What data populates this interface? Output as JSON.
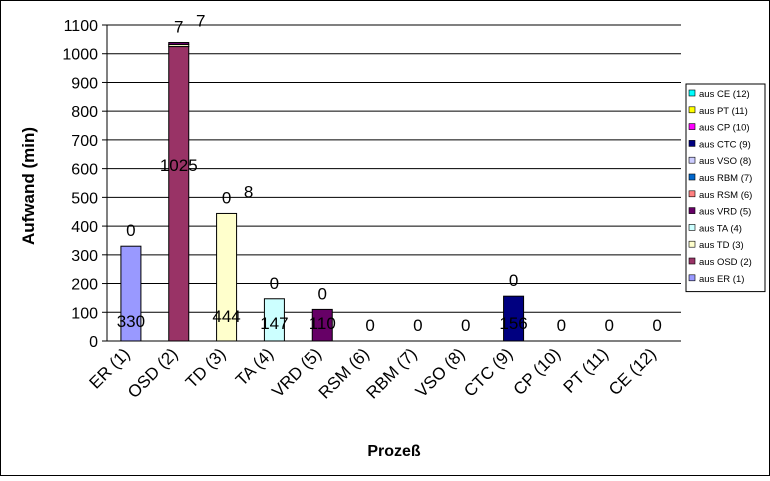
{
  "chart_data": {
    "type": "bar",
    "stacked": true,
    "categories": [
      "ER (1)",
      "OSD (2)",
      "TD (3)",
      "TA (4)",
      "VRD (5)",
      "RSM (6)",
      "RBM (7)",
      "VSO (8)",
      "CTC (9)",
      "CP (10)",
      "PT (11)",
      "CE (12)"
    ],
    "series": [
      {
        "name": "aus ER (1)",
        "color": "#9999ff",
        "values": [
          330,
          0,
          0,
          0,
          0,
          0,
          0,
          0,
          0,
          0,
          0,
          0
        ]
      },
      {
        "name": "aus OSD (2)",
        "color": "#993366",
        "values": [
          0,
          1025,
          0,
          0,
          0,
          0,
          0,
          0,
          0,
          0,
          0,
          0
        ]
      },
      {
        "name": "aus TD (3)",
        "color": "#ffffcc",
        "values": [
          0,
          7,
          444,
          0,
          0,
          0,
          0,
          0,
          0,
          0,
          0,
          0
        ]
      },
      {
        "name": "aus TA (4)",
        "color": "#ccffff",
        "values": [
          0,
          0,
          0,
          147,
          0,
          0,
          0,
          0,
          0,
          0,
          0,
          0
        ]
      },
      {
        "name": "aus VRD (5)",
        "color": "#660066",
        "values": [
          0,
          7,
          0,
          0,
          110,
          0,
          0,
          0,
          0,
          0,
          0,
          0
        ]
      },
      {
        "name": "aus RSM (6)",
        "color": "#ff8080",
        "values": [
          0,
          0,
          0,
          0,
          0,
          0,
          0,
          0,
          0,
          0,
          0,
          0
        ]
      },
      {
        "name": "aus RBM (7)",
        "color": "#0066cc",
        "values": [
          0,
          0,
          0,
          0,
          0,
          0,
          0,
          0,
          0,
          0,
          0,
          0
        ]
      },
      {
        "name": "aus VSO (8)",
        "color": "#ccccff",
        "values": [
          0,
          0,
          0,
          0,
          0,
          0,
          0,
          0,
          0,
          0,
          0,
          0
        ]
      },
      {
        "name": "aus CTC (9)",
        "color": "#000080",
        "values": [
          0,
          0,
          0,
          0,
          0,
          0,
          0,
          0,
          156,
          0,
          0,
          0
        ]
      },
      {
        "name": "aus CP (10)",
        "color": "#ff00ff",
        "values": [
          0,
          0,
          0,
          0,
          0,
          0,
          0,
          0,
          0,
          0,
          0,
          0
        ]
      },
      {
        "name": "aus PT (11)",
        "color": "#ffff00",
        "values": [
          0,
          0,
          0,
          0,
          0,
          0,
          0,
          0,
          0,
          0,
          0,
          0
        ]
      },
      {
        "name": "aus CE (12)",
        "color": "#00ffff",
        "values": [
          0,
          0,
          0,
          0,
          0,
          0,
          0,
          0,
          0,
          0,
          0,
          0
        ]
      }
    ],
    "data_labels": [
      {
        "category": "ER (1)",
        "text": "330"
      },
      {
        "category": "ER (1)",
        "text": "0"
      },
      {
        "category": "OSD (2)",
        "text": "1025"
      },
      {
        "category": "OSD (2)",
        "text": "7"
      },
      {
        "category": "OSD (2)",
        "text": "7"
      },
      {
        "category": "TD (3)",
        "text": "444"
      },
      {
        "category": "TD (3)",
        "text": "0"
      },
      {
        "category": "TD (3)",
        "text": "8"
      },
      {
        "category": "TA (4)",
        "text": "147"
      },
      {
        "category": "TA (4)",
        "text": "0"
      },
      {
        "category": "VRD (5)",
        "text": "110"
      },
      {
        "category": "VRD (5)",
        "text": "0"
      },
      {
        "category": "RSM (6)",
        "text": "0"
      },
      {
        "category": "RBM (7)",
        "text": "0"
      },
      {
        "category": "VSO (8)",
        "text": "0"
      },
      {
        "category": "CTC (9)",
        "text": "156"
      },
      {
        "category": "CTC (9)",
        "text": "0"
      },
      {
        "category": "CP (10)",
        "text": "0"
      },
      {
        "category": "PT (11)",
        "text": "0"
      },
      {
        "category": "CE (12)",
        "text": "0"
      }
    ],
    "title": "",
    "xlabel": "Prozeß",
    "ylabel": "Aufwand (min)",
    "ylim": [
      0,
      1100
    ],
    "yticks": [
      0,
      100,
      200,
      300,
      400,
      500,
      600,
      700,
      800,
      900,
      1000,
      1100
    ],
    "grid": true,
    "legend_position": "right"
  }
}
